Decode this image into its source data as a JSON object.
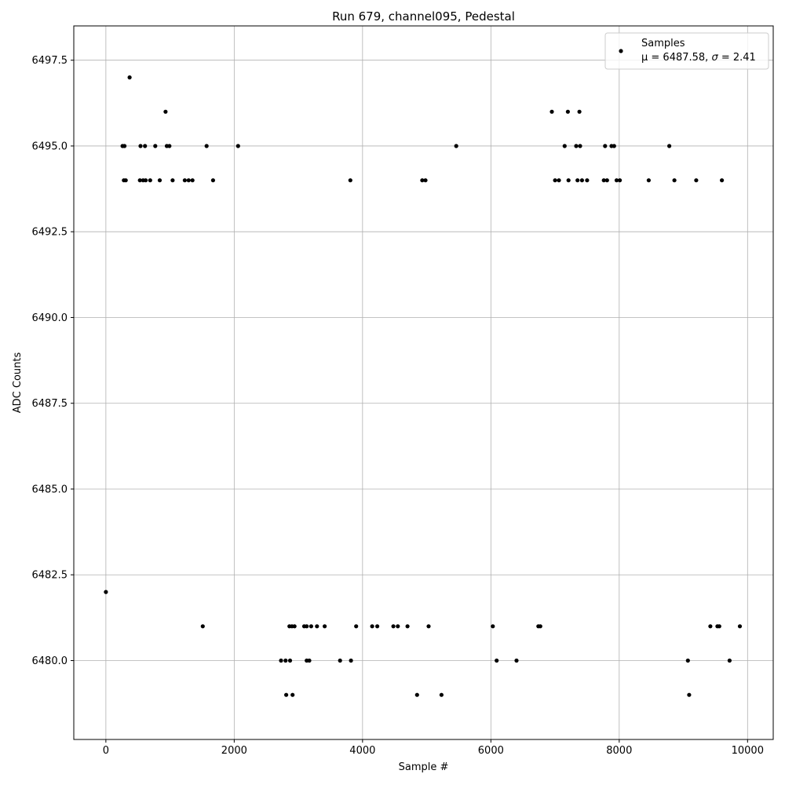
{
  "chart_data": {
    "type": "scatter",
    "title": "Run 679, channel095, Pedestal",
    "xlabel": "Sample #",
    "ylabel": "ADC Counts",
    "xlim": [
      -500,
      10400
    ],
    "ylim": [
      6477.7,
      6498.5
    ],
    "x_ticks": [
      0,
      2000,
      4000,
      6000,
      8000,
      10000
    ],
    "x_tick_labels": [
      "0",
      "2000",
      "4000",
      "6000",
      "8000",
      "10000"
    ],
    "y_ticks": [
      6480.0,
      6482.5,
      6485.0,
      6487.5,
      6490.0,
      6492.5,
      6495.0,
      6497.5
    ],
    "y_tick_labels": [
      "6480.0",
      "6482.5",
      "6485.0",
      "6487.5",
      "6490.0",
      "6492.5",
      "6495.0",
      "6497.5"
    ],
    "grid": true,
    "legend_position": "top-right",
    "marker_color": "#000000",
    "series": [
      {
        "name": "Samples",
        "annotation_prefix": "μ = 6487.58, ",
        "annotation_sigma": "σ",
        "annotation_suffix": " = 2.41",
        "points": [
          [
            0,
            6482
          ],
          [
            370,
            6497
          ],
          [
            930,
            6496
          ],
          [
            6950,
            6496
          ],
          [
            7200,
            6496
          ],
          [
            7380,
            6496
          ],
          [
            260,
            6495
          ],
          [
            290,
            6495
          ],
          [
            540,
            6495
          ],
          [
            610,
            6495
          ],
          [
            770,
            6495
          ],
          [
            950,
            6495
          ],
          [
            990,
            6495
          ],
          [
            1570,
            6495
          ],
          [
            2060,
            6495
          ],
          [
            5460,
            6495
          ],
          [
            7150,
            6495
          ],
          [
            7330,
            6495
          ],
          [
            7390,
            6495
          ],
          [
            7780,
            6495
          ],
          [
            7880,
            6495
          ],
          [
            7920,
            6495
          ],
          [
            8780,
            6495
          ],
          [
            280,
            6494
          ],
          [
            310,
            6494
          ],
          [
            530,
            6494
          ],
          [
            580,
            6494
          ],
          [
            620,
            6494
          ],
          [
            690,
            6494
          ],
          [
            840,
            6494
          ],
          [
            1040,
            6494
          ],
          [
            1230,
            6494
          ],
          [
            1290,
            6494
          ],
          [
            1350,
            6494
          ],
          [
            1670,
            6494
          ],
          [
            3810,
            6494
          ],
          [
            4930,
            6494
          ],
          [
            4980,
            6494
          ],
          [
            7000,
            6494
          ],
          [
            7060,
            6494
          ],
          [
            7210,
            6494
          ],
          [
            7350,
            6494
          ],
          [
            7420,
            6494
          ],
          [
            7500,
            6494
          ],
          [
            7760,
            6494
          ],
          [
            7810,
            6494
          ],
          [
            7960,
            6494
          ],
          [
            8010,
            6494
          ],
          [
            8460,
            6494
          ],
          [
            8860,
            6494
          ],
          [
            9200,
            6494
          ],
          [
            9600,
            6494
          ],
          [
            3820,
            6480
          ],
          [
            2730,
            6480
          ],
          [
            2800,
            6480
          ],
          [
            2870,
            6480
          ],
          [
            3130,
            6480
          ],
          [
            3170,
            6480
          ],
          [
            3650,
            6480
          ],
          [
            6090,
            6480
          ],
          [
            6400,
            6480
          ],
          [
            9070,
            6480
          ],
          [
            9720,
            6480
          ],
          [
            2810,
            6479
          ],
          [
            2910,
            6479
          ],
          [
            4850,
            6479
          ],
          [
            5230,
            6479
          ],
          [
            9090,
            6479
          ],
          [
            1510,
            6481
          ],
          [
            2860,
            6481
          ],
          [
            2900,
            6481
          ],
          [
            2940,
            6481
          ],
          [
            3090,
            6481
          ],
          [
            3130,
            6481
          ],
          [
            3200,
            6481
          ],
          [
            3290,
            6481
          ],
          [
            3410,
            6481
          ],
          [
            3900,
            6481
          ],
          [
            4150,
            6481
          ],
          [
            4230,
            6481
          ],
          [
            4480,
            6481
          ],
          [
            4550,
            6481
          ],
          [
            4700,
            6481
          ],
          [
            5030,
            6481
          ],
          [
            6030,
            6481
          ],
          [
            6740,
            6481
          ],
          [
            6770,
            6481
          ],
          [
            9420,
            6481
          ],
          [
            9530,
            6481
          ],
          [
            9560,
            6481
          ],
          [
            9880,
            6481
          ]
        ]
      }
    ]
  }
}
